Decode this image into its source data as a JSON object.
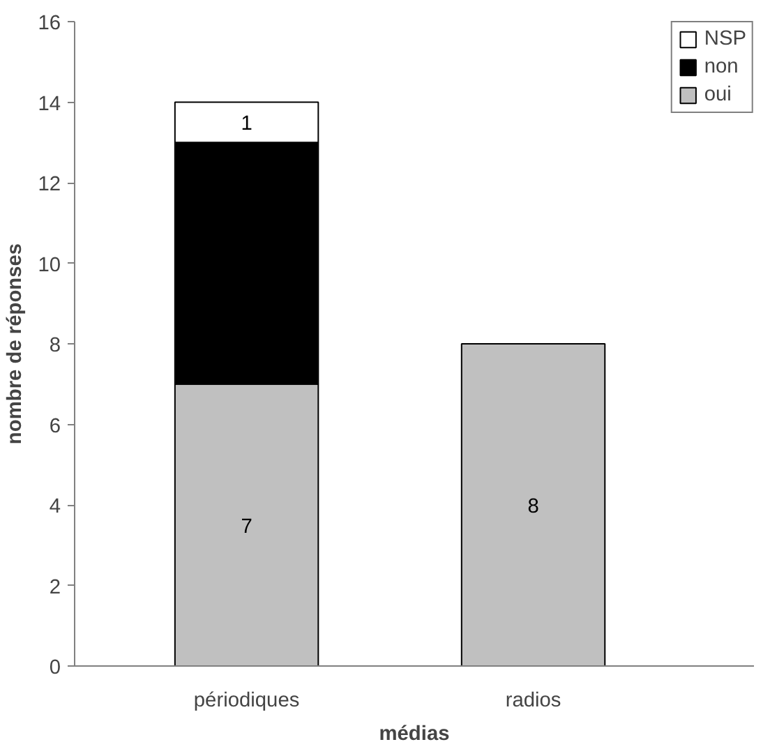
{
  "chart_data": {
    "type": "bar",
    "stacked": true,
    "xlabel": "médias",
    "ylabel": "nombre de réponses",
    "categories": [
      "périodiques",
      "radios"
    ],
    "ylim": [
      0,
      16
    ],
    "yticks": [
      0,
      2,
      4,
      6,
      8,
      10,
      12,
      14,
      16
    ],
    "grid": false,
    "legend": "top right",
    "series": [
      {
        "name": "oui",
        "color": "#c0c0c0",
        "values": [
          7,
          8
        ],
        "value_labels": [
          "7",
          "8"
        ]
      },
      {
        "name": "non",
        "color": "#000000",
        "values": [
          6,
          0
        ],
        "value_labels": [
          null,
          null
        ]
      },
      {
        "name": "NSP",
        "color": "#ffffff",
        "values": [
          1,
          0
        ],
        "value_labels": [
          "1",
          null
        ]
      }
    ]
  }
}
